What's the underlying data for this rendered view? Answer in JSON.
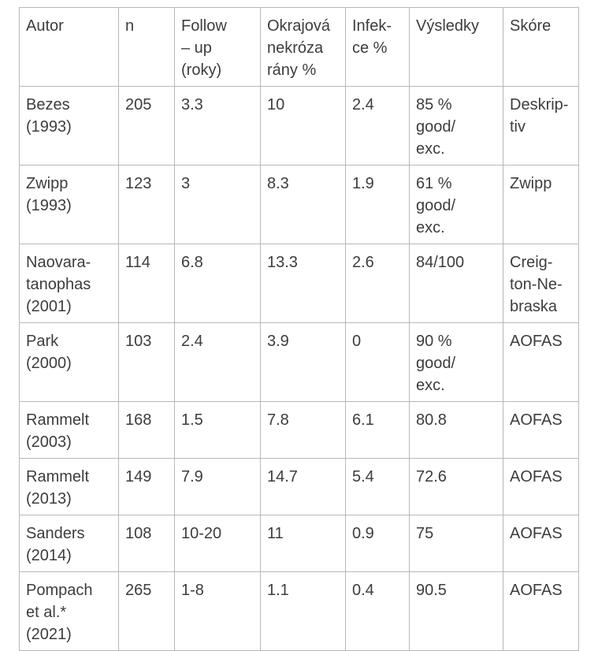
{
  "table": {
    "headers": [
      "Autor",
      "n",
      "Follow\n– up\n(roky)",
      "Okrajová\nnekróza\nrány %",
      "Infek-\nce %",
      "Výsledky",
      "Skóre"
    ],
    "rows": [
      [
        "Bezes\n(1993)",
        "205",
        "3.3",
        "10",
        "2.4",
        "85 %\ngood/\nexc.",
        "Deskrip-\ntiv"
      ],
      [
        "Zwipp\n(1993)",
        "123",
        "3",
        "8.3",
        "1.9",
        "61 %\ngood/\nexc.",
        "Zwipp"
      ],
      [
        "Naovara-\ntanophas\n(2001)",
        "114",
        "6.8",
        "13.3",
        "2.6",
        "84/100",
        "Creig-\nton-Ne-\nbraska"
      ],
      [
        "Park\n(2000)",
        "103",
        "2.4",
        "3.9",
        "0",
        "90 %\ngood/\nexc.",
        "AOFAS"
      ],
      [
        "Rammelt\n(2003)",
        "168",
        "1.5",
        "7.8",
        "6.1",
        "80.8",
        "AOFAS"
      ],
      [
        "Rammelt\n(2013)",
        "149",
        "7.9",
        "14.7",
        "5.4",
        "72.6",
        "AOFAS"
      ],
      [
        "Sanders\n(2014)",
        "108",
        "10-20",
        "11",
        "0.9",
        "75",
        "AOFAS"
      ],
      [
        "Pompach\net al.*\n(2021)",
        "265",
        "1-8",
        "1.1",
        "0.4",
        "90.5",
        "AOFAS"
      ]
    ]
  }
}
